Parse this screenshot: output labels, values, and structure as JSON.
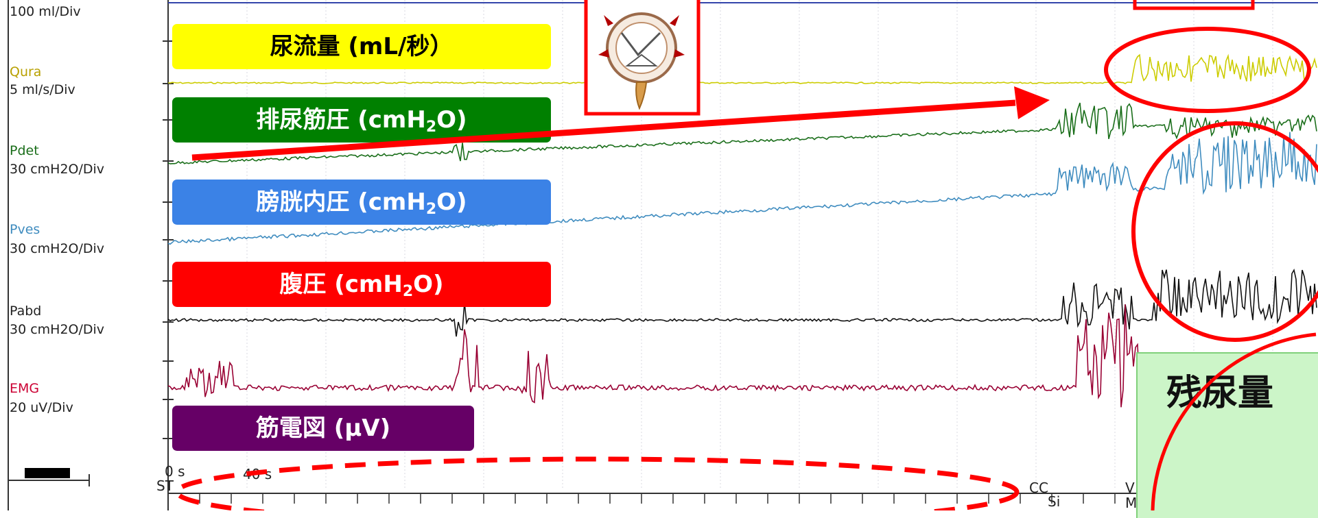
{
  "channels": {
    "vol_scale": "100 ml/Div",
    "qura_name": "Qura",
    "qura_scale": "5 ml/s/Div",
    "pdet_name": "Pdet",
    "pdet_scale": "30 cmH2O/Div",
    "pves_name": "Pves",
    "pves_scale": "30 cmH2O/Div",
    "pabd_name": "Pabd",
    "pabd_scale": "30 cmH2O/Div",
    "emg_name": "EMG",
    "emg_scale": "20 uV/Div"
  },
  "badges": {
    "flow_label": "尿流量 (mL/秒）",
    "pdet_main": "排尿筋圧 (cmH",
    "pves_main": "膀胱内圧 (cmH",
    "pabd_main": "腹圧 (cmH",
    "sub_2": "2",
    "tail_O": "O)",
    "emg_label": "筋電図 (µV)"
  },
  "annotations": {
    "residual_label": "残尿量"
  },
  "time_axis": {
    "start_label": "0 s",
    "st_label": "ST",
    "t40_label": "40 s",
    "cc_label": "CC",
    "si_label": "Si",
    "v_label": "V",
    "m_label": "M"
  },
  "colors": {
    "flow_badge": "#ffff00",
    "pdet_badge": "#008000",
    "pves_badge": "#3b82e6",
    "pabd_badge": "#ff0000",
    "emg_badge": "#660066",
    "qura_trace": "#cccc00",
    "pdet_trace": "#1a6e1a",
    "pves_trace": "#3f8cbf",
    "pabd_trace": "#111111",
    "emg_trace": "#990033",
    "annotation_red": "#ff0000"
  },
  "icons": [
    "bladder-illustration-icon"
  ]
}
